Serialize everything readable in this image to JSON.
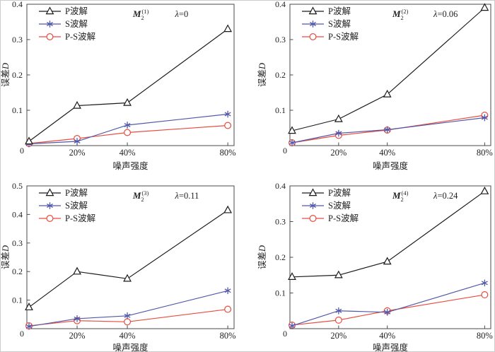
{
  "figure": {
    "xlabel": "噪声强度",
    "ylabel_cjk": "误差",
    "ylabel_var": "D",
    "origin_label": "0",
    "colors": {
      "p_wave": "#1a1a1a",
      "s_wave": "#5158a9",
      "ps_wave": "#e94c3d",
      "axis": "#4a4a4a",
      "text": "#1f1f1f"
    },
    "legend": {
      "position": "top-left-inside",
      "items": [
        {
          "label": "P波解",
          "marker": "triangle",
          "color": "#1a1a1a"
        },
        {
          "label": "S波解",
          "marker": "asterisk",
          "color": "#5158a9"
        },
        {
          "label": "P-S波解",
          "marker": "circle",
          "color": "#e94c3d"
        }
      ]
    }
  },
  "chart_data": [
    {
      "type": "line",
      "position": "top-left",
      "moment_label": "M",
      "moment_sub": "2",
      "moment_sup": "(1)",
      "lambda": "λ=0",
      "xlabel": "噪声强度",
      "ylabel": "误差D",
      "x": [
        0,
        20,
        40,
        80
      ],
      "x_tick_labels": [
        "0",
        "20%",
        "40%",
        "80%"
      ],
      "ylim": [
        0,
        0.4
      ],
      "yticks": [
        0.1,
        0.2,
        0.3,
        0.4
      ],
      "grid": false,
      "series": [
        {
          "name": "P波解",
          "marker": "triangle",
          "color": "#1a1a1a",
          "values": [
            0.012,
            0.113,
            0.121,
            0.33
          ]
        },
        {
          "name": "S波解",
          "marker": "asterisk",
          "color": "#5158a9",
          "values": [
            0.005,
            0.012,
            0.058,
            0.089
          ]
        },
        {
          "name": "P-S波解",
          "marker": "circle",
          "color": "#e94c3d",
          "values": [
            0.006,
            0.02,
            0.037,
            0.057
          ]
        }
      ]
    },
    {
      "type": "line",
      "position": "top-right",
      "moment_label": "M",
      "moment_sub": "2",
      "moment_sup": "(2)",
      "lambda": "λ=0.06",
      "xlabel": "噪声强度",
      "ylabel": "误差D",
      "x": [
        0,
        20,
        40,
        80
      ],
      "x_tick_labels": [
        "0",
        "20%",
        "40%",
        "80%"
      ],
      "ylim": [
        0,
        0.4
      ],
      "yticks": [
        0.1,
        0.2,
        0.3,
        0.4
      ],
      "grid": false,
      "series": [
        {
          "name": "P波解",
          "marker": "triangle",
          "color": "#1a1a1a",
          "values": [
            0.042,
            0.075,
            0.145,
            0.39
          ]
        },
        {
          "name": "S波解",
          "marker": "asterisk",
          "color": "#5158a9",
          "values": [
            0.008,
            0.035,
            0.045,
            0.079
          ]
        },
        {
          "name": "P-S波解",
          "marker": "circle",
          "color": "#e94c3d",
          "values": [
            0.008,
            0.029,
            0.044,
            0.086
          ]
        }
      ]
    },
    {
      "type": "line",
      "position": "bottom-left",
      "moment_label": "M",
      "moment_sub": "2",
      "moment_sup": "(3)",
      "lambda": "λ=0.11",
      "xlabel": "噪声强度",
      "ylabel": "误差D",
      "x": [
        0,
        20,
        40,
        80
      ],
      "x_tick_labels": [
        "0",
        "20%",
        "40%",
        "80%"
      ],
      "ylim": [
        0,
        0.5
      ],
      "yticks": [
        0.1,
        0.2,
        0.3,
        0.4,
        0.5
      ],
      "grid": false,
      "series": [
        {
          "name": "P波解",
          "marker": "triangle",
          "color": "#1a1a1a",
          "values": [
            0.075,
            0.2,
            0.175,
            0.415
          ]
        },
        {
          "name": "S波解",
          "marker": "asterisk",
          "color": "#5158a9",
          "values": [
            0.008,
            0.035,
            0.045,
            0.133
          ]
        },
        {
          "name": "P-S波解",
          "marker": "circle",
          "color": "#e94c3d",
          "values": [
            0.01,
            0.028,
            0.024,
            0.068
          ]
        }
      ]
    },
    {
      "type": "line",
      "position": "bottom-right",
      "moment_label": "M",
      "moment_sub": "2",
      "moment_sup": "(4)",
      "lambda": "λ=0.24",
      "xlabel": "噪声强度",
      "ylabel": "误差D",
      "x": [
        0,
        20,
        40,
        80
      ],
      "x_tick_labels": [
        "0",
        "20%",
        "40%",
        "80%"
      ],
      "ylim": [
        0,
        0.4
      ],
      "yticks": [
        0.1,
        0.2,
        0.3,
        0.4
      ],
      "grid": false,
      "series": [
        {
          "name": "P波解",
          "marker": "triangle",
          "color": "#1a1a1a",
          "values": [
            0.145,
            0.15,
            0.188,
            0.385
          ]
        },
        {
          "name": "S波解",
          "marker": "asterisk",
          "color": "#5158a9",
          "values": [
            0.008,
            0.05,
            0.046,
            0.128
          ]
        },
        {
          "name": "P-S波解",
          "marker": "circle",
          "color": "#e94c3d",
          "values": [
            0.01,
            0.024,
            0.05,
            0.095
          ]
        }
      ]
    }
  ]
}
